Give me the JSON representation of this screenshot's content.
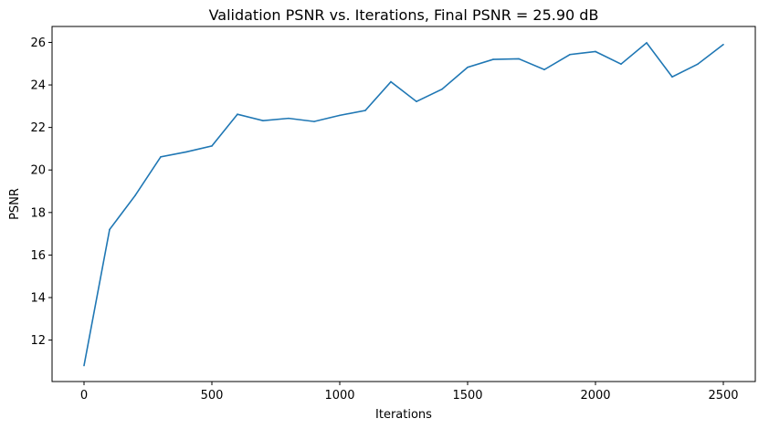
{
  "chart_data": {
    "type": "line",
    "title": "Validation PSNR vs. Iterations, Final PSNR = 25.90 dB",
    "xlabel": "Iterations",
    "ylabel": "PSNR",
    "xlim": [
      -125,
      2625
    ],
    "ylim": [
      10.05,
      26.75
    ],
    "xticks": [
      0,
      500,
      1000,
      1500,
      2000,
      2500
    ],
    "yticks": [
      12,
      14,
      16,
      18,
      20,
      22,
      24,
      26
    ],
    "grid": false,
    "legend": "none",
    "series": [
      {
        "color": "#1f77b4",
        "x": [
          0,
          100,
          200,
          300,
          400,
          500,
          600,
          700,
          800,
          900,
          1000,
          1100,
          1200,
          1300,
          1400,
          1500,
          1600,
          1700,
          1800,
          1900,
          2000,
          2100,
          2200,
          2300,
          2400,
          2500
        ],
        "y": [
          10.8,
          17.2,
          18.8,
          20.62,
          20.85,
          21.13,
          22.62,
          22.32,
          22.43,
          22.28,
          22.57,
          22.8,
          24.15,
          23.22,
          23.8,
          24.83,
          25.2,
          25.23,
          24.72,
          25.43,
          25.57,
          24.98,
          25.98,
          24.38,
          24.98,
          25.9
        ]
      }
    ]
  }
}
